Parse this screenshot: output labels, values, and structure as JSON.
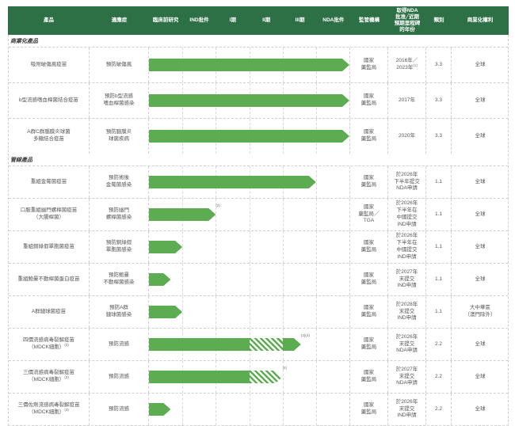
{
  "colors": {
    "header_bg": "#2e7046",
    "bar_green": "#5cad52",
    "border": "#cfcfcf",
    "header_text": "#ffffff"
  },
  "chart_data": {
    "type": "bar",
    "subtype": "pipeline-gantt",
    "stage_axis_note": "bar length measured in pipeline stages 0-6 (臨床前研究→NDA批件)",
    "header": {
      "product": "產品",
      "indication": "適應症",
      "stages": [
        "臨床前研究",
        "IND批件",
        "I期",
        "II期",
        "III期",
        "NDA批件"
      ],
      "regulator": "監管機構",
      "milestone_lines": [
        "取得NDA",
        "批准╱近期",
        "預期里程碑",
        "的年份"
      ],
      "category": "類別",
      "rights": "商業化權利"
    },
    "sections": [
      {
        "label": "商業化產品",
        "rows": [
          {
            "product_lines": [
              "吸附破傷風疫苗"
            ],
            "indication_lines": [
              "預防破傷風"
            ],
            "bar": {
              "segments": [
                {
                  "style": "solid",
                  "from": 0,
                  "to": 6
                }
              ]
            },
            "regulator_lines": [
              "國家",
              "藥監局"
            ],
            "milestone_lines": [
              "2016年／",
              "2023年"
            ],
            "milestone_sup": "(1)",
            "category": "3.3",
            "rights_lines": [
              "全球"
            ]
          },
          {
            "product_lines": [
              "b型流感嗜血桿菌結合疫苗"
            ],
            "indication_lines": [
              "預防b型流感",
              "嗜血桿菌感染"
            ],
            "bar": {
              "segments": [
                {
                  "style": "solid",
                  "from": 0,
                  "to": 6
                }
              ]
            },
            "regulator_lines": [
              "國家",
              "藥監局"
            ],
            "milestone_lines": [
              "2017年"
            ],
            "category": "3.3",
            "rights_lines": [
              "全球"
            ]
          },
          {
            "product_lines": [
              "A群C群腦膜炎球菌",
              "多糖結合疫苗"
            ],
            "indication_lines": [
              "預防腦膜炎",
              "球菌疾病"
            ],
            "bar": {
              "segments": [
                {
                  "style": "solid",
                  "from": 0,
                  "to": 6
                }
              ]
            },
            "regulator_lines": [
              "國家",
              "藥監局"
            ],
            "milestone_lines": [
              "2020年"
            ],
            "category": "3.3",
            "rights_lines": [
              "全球"
            ]
          }
        ]
      },
      {
        "label": "管線產品",
        "rows": [
          {
            "product_lines": [
              "重組金葡菌疫苗"
            ],
            "indication_lines": [
              "預防術後",
              "金葡菌感染"
            ],
            "bar": {
              "segments": [
                {
                  "style": "solid",
                  "from": 0,
                  "to": 5
                }
              ]
            },
            "regulator_lines": [
              "國家",
              "藥監局"
            ],
            "milestone_lines": [
              "於2026年",
              "下半年提交",
              "NDA申請"
            ],
            "category": "1.1",
            "rights_lines": [
              "全球"
            ]
          },
          {
            "product_lines": [
              "口服重組幽門螺桿菌疫苗",
              "（大腸桿菌）"
            ],
            "indication_lines": [
              "預防幽門",
              "螺桿菌感染"
            ],
            "bar": {
              "segments": [
                {
                  "style": "solid",
                  "from": 0,
                  "to": 2
                }
              ],
              "sup": "(2)"
            },
            "regulator_lines": [
              "國家",
              "藥監局／",
              "TGA"
            ],
            "milestone_lines": [
              "於2026年",
              "下半年在",
              "中國提交",
              "IND申請"
            ],
            "category": "1.1",
            "rights_lines": [
              "全球"
            ]
          },
          {
            "product_lines": [
              "重組銅綠假單胞菌疫苗"
            ],
            "indication_lines": [
              "預防銅綠假",
              "單胞菌感染"
            ],
            "bar": {
              "segments": [
                {
                  "style": "solid",
                  "from": 0,
                  "to": 1
                }
              ]
            },
            "regulator_lines": [
              "國家",
              "藥監局"
            ],
            "milestone_lines": [
              "於2026年",
              "下半年在",
              "中國提交",
              "IND申請"
            ],
            "category": "1.1",
            "rights_lines": [
              "全球"
            ]
          },
          {
            "product_lines": [
              "重組鮑曼不動桿菌蛋白疫苗"
            ],
            "indication_lines": [
              "預防鮑曼",
              "不動桿菌感染"
            ],
            "bar": {
              "segments": [
                {
                  "style": "solid",
                  "from": 0,
                  "to": 0.65
                }
              ]
            },
            "regulator_lines": [
              "國家",
              "藥監局"
            ],
            "milestone_lines": [
              "於2027年",
              "末提交",
              "IND申請"
            ],
            "category": "1.1",
            "rights_lines": [
              "全球"
            ]
          },
          {
            "product_lines": [
              "A群鏈球菌疫苗"
            ],
            "indication_lines": [
              "預防A群",
              "鏈球菌感染"
            ],
            "bar": {
              "segments": [
                {
                  "style": "solid",
                  "from": 0,
                  "to": 1
                }
              ]
            },
            "regulator_lines": [
              "國家",
              "藥監局"
            ],
            "milestone_lines": [
              "於2028年",
              "末提交",
              "IND申請"
            ],
            "category": "1.1",
            "rights_lines": [
              "大中華區",
              "（澳門除外）"
            ]
          },
          {
            "product_lines": [
              "四價流感病毒裂解疫苗",
              "（MDCK細胞）"
            ],
            "product_sup": "(3)",
            "indication_lines": [
              "預防流感"
            ],
            "bar": {
              "segments": [
                {
                  "style": "solid",
                  "from": 0,
                  "to": 3
                },
                {
                  "style": "hatch",
                  "from": 3,
                  "to": 4
                },
                {
                  "style": "solid",
                  "from": 4,
                  "to": 4.55
                }
              ],
              "sup": "(3)(4)"
            },
            "regulator_lines": [
              "國家",
              "藥監局"
            ],
            "milestone_lines": [
              "於2026年",
              "末提交",
              "NDA申請"
            ],
            "category": "2.2",
            "rights_lines": [
              "全球"
            ]
          },
          {
            "product_lines": [
              "三價流感病毒裂解疫苗",
              "（MDCK細胞）"
            ],
            "product_sup": "(3)",
            "indication_lines": [
              "預防流感"
            ],
            "bar": {
              "segments": [
                {
                  "style": "solid",
                  "from": 0,
                  "to": 3
                },
                {
                  "style": "hatch",
                  "from": 3,
                  "to": 4
                }
              ],
              "sup": "(4)"
            },
            "regulator_lines": [
              "國家",
              "藥監局"
            ],
            "milestone_lines": [
              "於2027年",
              "末提交",
              "NDA申請"
            ],
            "category": "2.2",
            "rights_lines": [
              "全球"
            ]
          },
          {
            "product_lines": [
              "三價佐劑流感病毒裂解疫苗",
              "（MDCK細胞）"
            ],
            "product_sup": "(3)",
            "indication_lines": [
              "預防流感"
            ],
            "bar": {
              "segments": [
                {
                  "style": "solid",
                  "from": 0,
                  "to": 0.65
                }
              ]
            },
            "regulator_lines": [
              "國家",
              "藥監局"
            ],
            "milestone_lines": [
              "於2026年",
              "末提交",
              "IND申請"
            ],
            "category": "2.2",
            "rights_lines": [
              "全球"
            ]
          }
        ]
      }
    ]
  }
}
